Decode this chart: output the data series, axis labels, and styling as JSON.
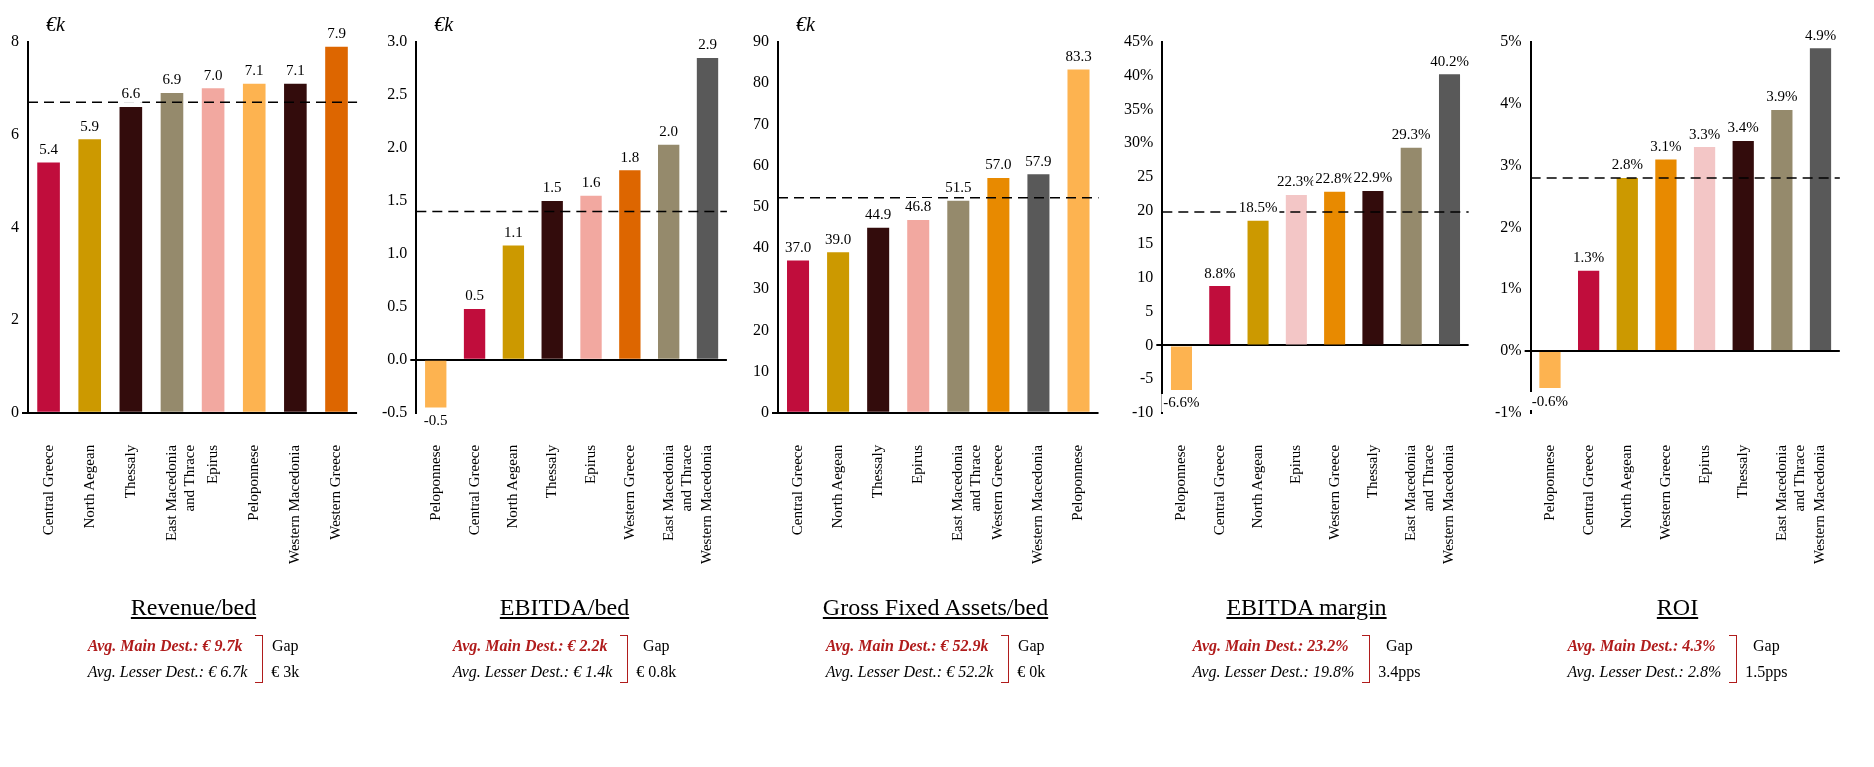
{
  "chart_data": [
    {
      "type": "bar",
      "title": "Revenue/bed",
      "ylabel": "€k",
      "categories": [
        "Central Greece",
        "North Aegean",
        "Thessaly",
        "East Macedonia and Thrace",
        "Epirus",
        "Peloponnese",
        "Western Macedonia",
        "Western Greece"
      ],
      "values": [
        5.4,
        5.9,
        6.6,
        6.9,
        7.0,
        7.1,
        7.1,
        7.9
      ],
      "value_labels": [
        "5.4",
        "5.9",
        "6.6",
        "6.9",
        "7.0",
        "7.1",
        "7.1",
        "7.9"
      ],
      "colors": [
        "#c00d3c",
        "#cc9900",
        "#330c0c",
        "#958a6c",
        "#f2a8a0",
        "#fdb350",
        "#330c0c",
        "#dd6600"
      ],
      "ylim": [
        0,
        8
      ],
      "yticks": [
        0,
        2,
        4,
        6,
        8
      ],
      "ref_lines": [
        {
          "axis": "y",
          "value": 6.7,
          "line_style": "dashed",
          "color": "#000000"
        }
      ],
      "annotations": [
        "Avg. Main Dest.: € 9.7k",
        "Avg. Lesser Dest.: € 6.7k",
        "Gap",
        "€ 3k"
      ]
    },
    {
      "type": "bar",
      "title": "EBITDA/bed",
      "ylabel": "€k",
      "categories": [
        "Peloponnese",
        "Central Greece",
        "North Aegean",
        "Thessaly",
        "Epirus",
        "Western Greece",
        "East Macedonia and Thrace",
        "Western Macedonia"
      ],
      "values": [
        -0.45,
        0.48,
        1.08,
        1.5,
        1.55,
        1.79,
        2.03,
        2.85
      ],
      "value_labels": [
        "-0.5",
        "0.5",
        "1.1",
        "1.5",
        "1.6",
        "1.8",
        "2.0",
        "2.9"
      ],
      "colors": [
        "#fdb350",
        "#c00d3c",
        "#cc9900",
        "#330c0c",
        "#f2a8a0",
        "#dd6600",
        "#958a6c",
        "#595959"
      ],
      "ylim": [
        -0.5,
        3.0
      ],
      "yticks": [
        {
          "value": -0.5,
          "label": "-0.5"
        },
        {
          "value": 0,
          "label": "0.0"
        },
        {
          "value": 0.5,
          "label": "0.5"
        },
        {
          "value": 1,
          "label": "1.0"
        },
        {
          "value": 1.5,
          "label": "1.5"
        },
        {
          "value": 2,
          "label": "2.0"
        },
        {
          "value": 2.5,
          "label": "2.5"
        },
        {
          "value": 3,
          "label": "3.0"
        }
      ],
      "ref_lines": [
        {
          "axis": "y",
          "value": 1.4,
          "line_style": "dashed",
          "color": "#000000"
        }
      ],
      "annotations": [
        "Avg. Main Dest.: € 2.2k",
        "Avg. Lesser Dest.: € 1.4k",
        "Gap",
        "€ 0.8k"
      ]
    },
    {
      "type": "bar",
      "title": "Gross Fixed Assets/bed",
      "ylabel": "€k",
      "categories": [
        "Central Greece",
        "North Aegean",
        "Thessaly",
        "Epirus",
        "East Macedonia and Thrace",
        "Western Greece",
        "Western Macedonia",
        "Peloponnese"
      ],
      "values": [
        37.0,
        39.0,
        44.9,
        46.8,
        51.5,
        57.0,
        57.9,
        83.3
      ],
      "value_labels": [
        "37.0",
        "39.0",
        "44.9",
        "46.8",
        "51.5",
        "57.0",
        "57.9",
        "83.3"
      ],
      "colors": [
        "#c00d3c",
        "#cc9900",
        "#330c0c",
        "#f2a8a0",
        "#958a6c",
        "#e88a00",
        "#595959",
        "#fdb350"
      ],
      "ylim": [
        0,
        90
      ],
      "yticks": [
        0,
        10,
        20,
        30,
        40,
        50,
        60,
        70,
        80,
        90
      ],
      "ref_lines": [
        {
          "axis": "y",
          "value": 52.2,
          "line_style": "dashed",
          "color": "#000000"
        }
      ],
      "annotations": [
        "Avg. Main Dest.: € 52.9k",
        "Avg. Lesser Dest.: € 52.2k",
        "Gap",
        "€ 0k"
      ]
    },
    {
      "type": "bar",
      "title": "EBITDA margin",
      "categories": [
        "Peloponnese",
        "Central Greece",
        "North Aegean",
        "Epirus",
        "Western Greece",
        "Thessaly",
        "East Macedonia and Thrace",
        "Western Macedonia"
      ],
      "values": [
        -6.6,
        8.8,
        18.5,
        22.3,
        22.8,
        22.9,
        29.3,
        40.2
      ],
      "value_labels": [
        "-6.6%",
        "8.8%",
        "18.5%",
        "22.3%",
        "22.8%",
        "22.9%",
        "29.3%",
        "40.2%"
      ],
      "colors": [
        "#fdb350",
        "#c00d3c",
        "#cc9900",
        "#f3c6c6",
        "#e88a00",
        "#330c0c",
        "#958a6c",
        "#595959"
      ],
      "ylim": [
        -10,
        45
      ],
      "yticks": [
        -10,
        -5,
        0,
        5,
        10,
        15,
        20,
        25,
        {
          "value": 30,
          "label": "30%"
        },
        {
          "value": 35,
          "label": "35%"
        },
        {
          "value": 40,
          "label": "40%"
        },
        {
          "value": 45,
          "label": "45%"
        }
      ],
      "ref_lines": [
        {
          "axis": "y",
          "value": 19.8,
          "line_style": "dashed",
          "color": "#000000"
        }
      ],
      "annotations": [
        "Avg. Main Dest.: 23.2%",
        "Avg. Lesser Dest.: 19.8%",
        "Gap",
        "3.4pps"
      ]
    },
    {
      "type": "bar",
      "title": "ROI",
      "categories": [
        "Peloponnese",
        "Central Greece",
        "North Aegean",
        "Western Greece",
        "Epirus",
        "Thessaly",
        "East Macedonia and Thrace",
        "Western Macedonia"
      ],
      "values": [
        -0.6,
        1.3,
        2.8,
        3.1,
        3.3,
        3.4,
        3.9,
        4.9
      ],
      "value_labels": [
        "-0.6%",
        "1.3%",
        "2.8%",
        "3.1%",
        "3.3%",
        "3.4%",
        "3.9%",
        "4.9%"
      ],
      "colors": [
        "#fdb350",
        "#c00d3c",
        "#cc9900",
        "#e88a00",
        "#f3c6c6",
        "#330c0c",
        "#958a6c",
        "#595959"
      ],
      "ylim": [
        -1,
        5
      ],
      "yticks": [
        {
          "value": -1,
          "label": "-1%"
        },
        {
          "value": 0,
          "label": "0%"
        },
        {
          "value": 1,
          "label": "1%"
        },
        {
          "value": 2,
          "label": "2%"
        },
        {
          "value": 3,
          "label": "3%"
        },
        {
          "value": 4,
          "label": "4%"
        },
        {
          "value": 5,
          "label": "5%"
        }
      ],
      "ref_lines": [
        {
          "axis": "y",
          "value": 2.8,
          "line_style": "dashed",
          "color": "#000000"
        }
      ],
      "annotations": [
        "Avg. Main Dest.: 4.3%",
        "Avg. Lesser Dest.: 2.8%",
        "Gap",
        "1.5pps"
      ]
    }
  ]
}
